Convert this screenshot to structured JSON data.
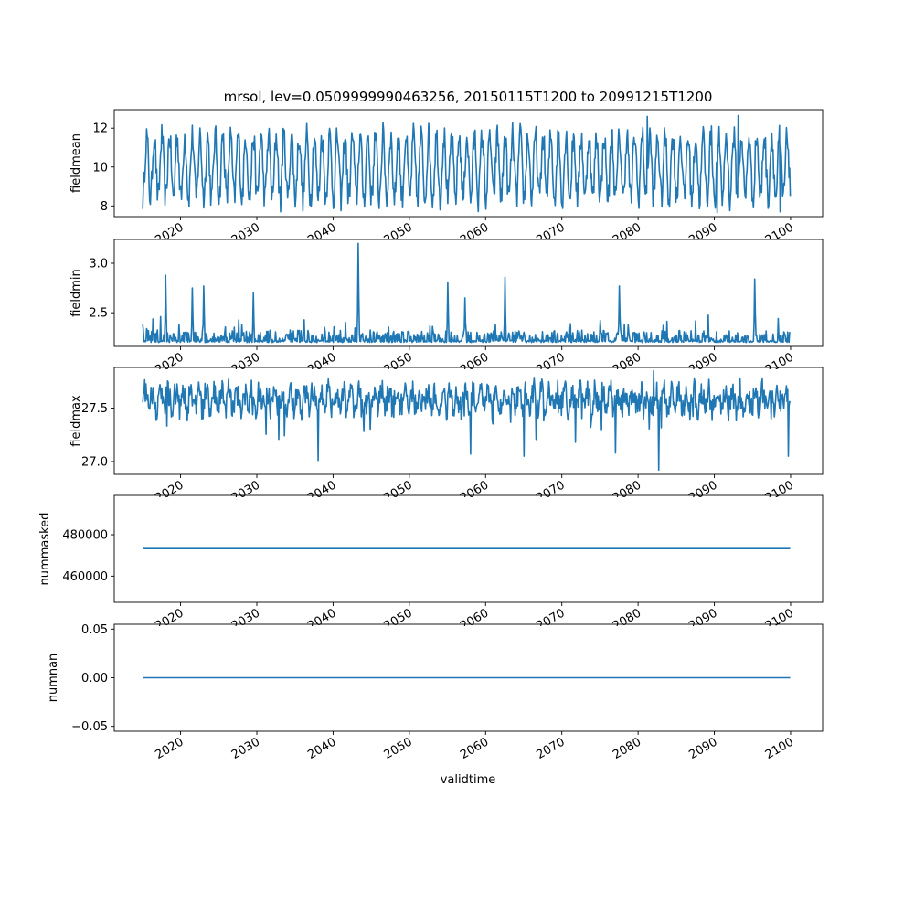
{
  "chart_data": {
    "type": "line",
    "title": "mrsol, lev=0.0509999990463256, 20150115T1200 to 20991215T1200",
    "xlabel": "validtime",
    "x_start": "2015-01-15",
    "x_end": "2099-12-15",
    "x_tick_labels": [
      "2020",
      "2030",
      "2040",
      "2050",
      "2060",
      "2070",
      "2080",
      "2090",
      "2100"
    ],
    "line_color": "#1f77b4",
    "grid": false,
    "panels": [
      {
        "ylabel": "fieldmean",
        "ylim": [
          7.45,
          12.95
        ],
        "y_ticks": [
          {
            "v": 8,
            "label": "8"
          },
          {
            "v": 10,
            "label": "10"
          },
          {
            "v": 12,
            "label": "12"
          }
        ],
        "series_kind": "oscillating",
        "base": 10.0,
        "amplitude": 1.6,
        "noise": 0.7,
        "extremes": [
          [
            2081.2,
            12.6
          ],
          [
            2093.1,
            12.65
          ],
          [
            2033.1,
            7.7
          ],
          [
            2090.4,
            7.65
          ],
          [
            2098.6,
            7.7
          ]
        ],
        "values_summary": {
          "min": 7.65,
          "max": 12.65,
          "mean": 10.0
        }
      },
      {
        "ylabel": "fieldmin",
        "ylim": [
          2.16,
          3.24
        ],
        "y_ticks": [
          {
            "v": 2.5,
            "label": "2.5"
          },
          {
            "v": 3.0,
            "label": "3.0"
          }
        ],
        "series_kind": "spiky",
        "base": 2.2,
        "amplitude": 0.06,
        "noise": 0.04,
        "extremes": [
          [
            2018.0,
            2.88
          ],
          [
            2021.5,
            2.75
          ],
          [
            2023.0,
            2.77
          ],
          [
            2029.5,
            2.7
          ],
          [
            2043.3,
            3.2
          ],
          [
            2055.0,
            2.81
          ],
          [
            2057.3,
            2.65
          ],
          [
            2062.5,
            2.86
          ],
          [
            2077.5,
            2.77
          ],
          [
            2095.3,
            2.84
          ]
        ],
        "values_summary": {
          "min": 2.2,
          "max": 3.2,
          "mean": 2.27
        }
      },
      {
        "ylabel": "fieldmax",
        "ylim": [
          26.88,
          27.88
        ],
        "y_ticks": [
          {
            "v": 27.0,
            "label": "27.0"
          },
          {
            "v": 27.5,
            "label": "27.5"
          }
        ],
        "series_kind": "noisy",
        "base": 27.58,
        "amplitude": 0.08,
        "noise": 0.12,
        "extremes": [
          [
            2038.0,
            27.01
          ],
          [
            2058.0,
            27.07
          ],
          [
            2065.0,
            27.05
          ],
          [
            2077.0,
            27.08
          ],
          [
            2082.7,
            26.92
          ],
          [
            2099.7,
            27.05
          ],
          [
            2082.0,
            27.85
          ]
        ],
        "values_summary": {
          "min": 26.92,
          "max": 27.85,
          "mean": 27.58
        }
      },
      {
        "ylabel": "nummasked",
        "ylim": [
          447350,
          499000
        ],
        "y_ticks": [
          {
            "v": 460000,
            "label": "460000"
          },
          {
            "v": 480000,
            "label": "480000"
          }
        ],
        "series_kind": "constant",
        "value": 473300
      },
      {
        "ylabel": "numnan",
        "ylim": [
          -0.055,
          0.055
        ],
        "y_ticks": [
          {
            "v": -0.05,
            "label": "−0.05"
          },
          {
            "v": 0.0,
            "label": "0.00"
          },
          {
            "v": 0.05,
            "label": "0.05"
          }
        ],
        "series_kind": "constant",
        "value": 0.0
      }
    ]
  }
}
